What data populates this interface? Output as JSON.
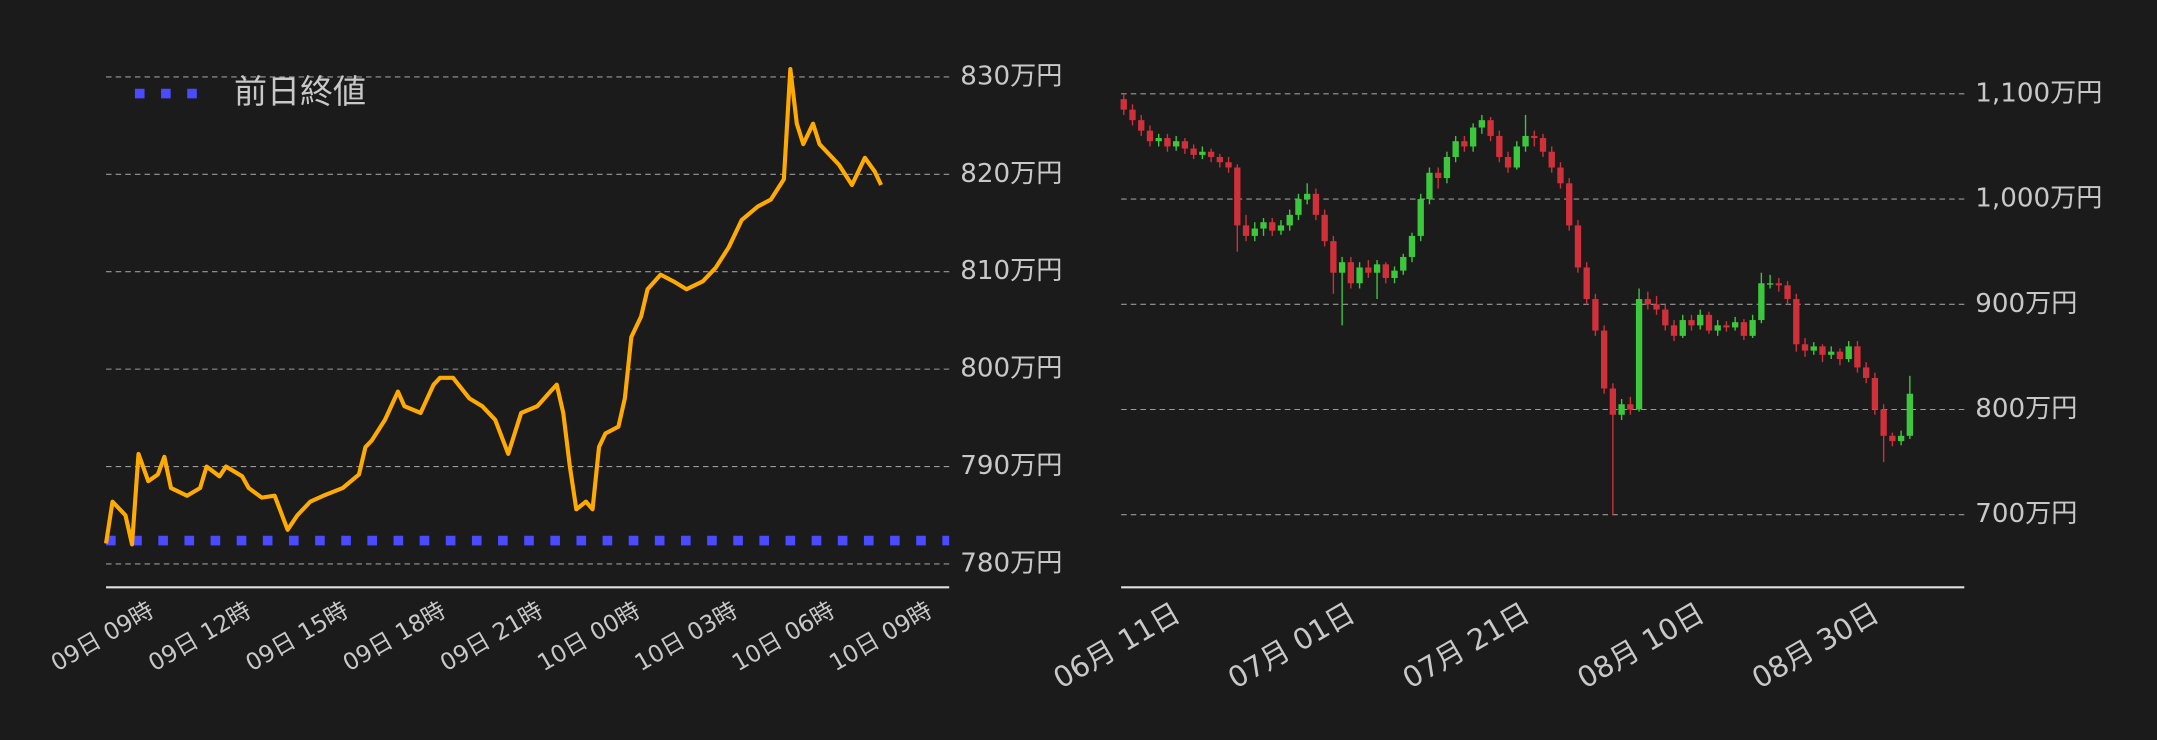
{
  "chart_data": [
    {
      "type": "line",
      "x": [
        -1.0,
        -0.8,
        -0.4,
        -0.2,
        0.0,
        0.3,
        0.6,
        0.8,
        1.0,
        1.5,
        1.9,
        2.1,
        2.5,
        2.7,
        3.2,
        3.4,
        3.8,
        4.2,
        4.6,
        4.9,
        5.3,
        5.7,
        6.3,
        6.8,
        7.0,
        7.2,
        7.6,
        8.0,
        8.2,
        8.7,
        9.1,
        9.3,
        9.7,
        10.2,
        10.6,
        11.0,
        11.4,
        11.8,
        12.3,
        12.7,
        12.9,
        13.1,
        13.3,
        13.5,
        13.8,
        14.0,
        14.2,
        14.4,
        14.8,
        15.0,
        15.2,
        15.5,
        15.7,
        16.1,
        16.5,
        16.9,
        17.4,
        17.8,
        18.2,
        18.6,
        19.1,
        19.5,
        19.9,
        20.1,
        20.3,
        20.5,
        20.8,
        21.0,
        21.2,
        21.6,
        22.0,
        22.4,
        22.7,
        22.9
      ],
      "series": [
        {
          "color": "#ffaa00",
          "values": [
            782.1,
            786.4,
            785,
            782,
            791.3,
            788.5,
            789.2,
            791,
            787.8,
            787,
            787.8,
            790,
            789,
            790,
            789,
            787.8,
            786.8,
            787,
            783.5,
            785,
            786.4,
            787,
            787.8,
            789.2,
            792,
            792.7,
            794.8,
            797.7,
            796.2,
            795.5,
            798.4,
            799.1,
            799.1,
            797,
            796.2,
            794.8,
            791.3,
            795.5,
            796.2,
            797.7,
            798.4,
            795.5,
            790,
            785.6,
            786.4,
            785.6,
            792,
            793.4,
            794.1,
            797,
            803.3,
            805.4,
            808.2,
            809.7,
            809,
            808.2,
            809,
            810.4,
            812.5,
            815.3,
            816.7,
            817.4,
            819.5,
            830.8,
            825.2,
            823.1,
            825.2,
            823.1,
            822.4,
            821,
            818.9,
            821.7,
            820.3,
            818.9
          ]
        }
      ],
      "reference_lines": [
        {
          "name": "前日終値",
          "value": 782.4,
          "color": "#4a4aff"
        }
      ],
      "legend": "upper left",
      "xlim": [
        -1,
        25
      ],
      "xticks": [
        {
          "value": 0,
          "label": "09日 09時"
        },
        {
          "value": 3,
          "label": "09日 12時"
        },
        {
          "value": 6,
          "label": "09日 15時"
        },
        {
          "value": 9,
          "label": "09日 18時"
        },
        {
          "value": 12,
          "label": "09日 21時"
        },
        {
          "value": 15,
          "label": "10日 00時"
        },
        {
          "value": 18,
          "label": "10日 03時"
        },
        {
          "value": 21,
          "label": "10日 06時"
        },
        {
          "value": 24,
          "label": "10日 09時"
        }
      ],
      "ylim": [
        777.6,
        831.4
      ],
      "yticks": [
        {
          "value": 780,
          "label": "780万円"
        },
        {
          "value": 790,
          "label": "790万円"
        },
        {
          "value": 800,
          "label": "800万円"
        },
        {
          "value": 810,
          "label": "810万円"
        },
        {
          "value": 820,
          "label": "820万円"
        },
        {
          "value": 830,
          "label": "830万円"
        }
      ],
      "grid": true
    },
    {
      "type": "candlestick",
      "up_color": "#3cc83c",
      "down_color": "#d0303a",
      "categories": [
        null,
        null,
        null,
        null,
        null,
        "06月 11日",
        null,
        null,
        null,
        null,
        null,
        null,
        null,
        null,
        null,
        null,
        null,
        null,
        null,
        null,
        null,
        null,
        null,
        null,
        null,
        "07月 01日",
        null,
        null,
        null,
        null,
        null,
        null,
        null,
        null,
        null,
        null,
        null,
        null,
        null,
        null,
        null,
        null,
        null,
        null,
        null,
        "07月 21日",
        null,
        null,
        null,
        null,
        null,
        null,
        null,
        null,
        null,
        null,
        null,
        null,
        null,
        null,
        null,
        null,
        null,
        null,
        null,
        "08月 10日",
        null,
        null,
        null,
        null,
        null,
        null,
        null,
        null,
        null,
        null,
        null,
        null,
        null,
        null,
        null,
        null,
        null,
        null,
        null,
        "08月 30日",
        null,
        null,
        null,
        null,
        null
      ],
      "ohlc": [
        [
          1095,
          1100,
          1080,
          1085
        ],
        [
          1085,
          1090,
          1070,
          1075
        ],
        [
          1075,
          1080,
          1060,
          1065
        ],
        [
          1065,
          1070,
          1050,
          1055
        ],
        [
          1055,
          1062,
          1050,
          1058
        ],
        [
          1058,
          1062,
          1045,
          1050
        ],
        [
          1050,
          1060,
          1046,
          1055
        ],
        [
          1055,
          1058,
          1043,
          1048
        ],
        [
          1048,
          1052,
          1038,
          1042
        ],
        [
          1042,
          1050,
          1038,
          1045
        ],
        [
          1045,
          1048,
          1035,
          1040
        ],
        [
          1040,
          1043,
          1030,
          1035
        ],
        [
          1035,
          1040,
          1025,
          1030
        ],
        [
          1030,
          1033,
          950,
          975
        ],
        [
          975,
          985,
          960,
          965
        ],
        [
          965,
          978,
          960,
          972
        ],
        [
          972,
          982,
          965,
          978
        ],
        [
          978,
          982,
          965,
          970
        ],
        [
          970,
          980,
          966,
          975
        ],
        [
          975,
          990,
          970,
          985
        ],
        [
          985,
          1005,
          980,
          1000
        ],
        [
          1000,
          1015,
          995,
          1005
        ],
        [
          1005,
          1010,
          980,
          985
        ],
        [
          985,
          990,
          955,
          960
        ],
        [
          960,
          965,
          910,
          930
        ],
        [
          930,
          945,
          880,
          940
        ],
        [
          940,
          945,
          915,
          920
        ],
        [
          920,
          940,
          915,
          935
        ],
        [
          935,
          942,
          925,
          930
        ],
        [
          930,
          942,
          905,
          938
        ],
        [
          938,
          940,
          920,
          925
        ],
        [
          925,
          936,
          920,
          932
        ],
        [
          932,
          948,
          928,
          945
        ],
        [
          945,
          968,
          940,
          965
        ],
        [
          965,
          1005,
          960,
          1000
        ],
        [
          1000,
          1030,
          995,
          1025
        ],
        [
          1025,
          1030,
          1010,
          1020
        ],
        [
          1020,
          1045,
          1015,
          1040
        ],
        [
          1040,
          1060,
          1035,
          1055
        ],
        [
          1055,
          1060,
          1045,
          1050
        ],
        [
          1050,
          1072,
          1045,
          1068
        ],
        [
          1068,
          1080,
          1062,
          1075
        ],
        [
          1075,
          1078,
          1055,
          1060
        ],
        [
          1060,
          1065,
          1035,
          1040
        ],
        [
          1040,
          1045,
          1025,
          1030
        ],
        [
          1030,
          1055,
          1028,
          1050
        ],
        [
          1050,
          1080,
          1045,
          1060
        ],
        [
          1060,
          1065,
          1050,
          1058
        ],
        [
          1058,
          1062,
          1040,
          1045
        ],
        [
          1045,
          1050,
          1025,
          1030
        ],
        [
          1030,
          1035,
          1010,
          1015
        ],
        [
          1015,
          1020,
          970,
          975
        ],
        [
          975,
          980,
          930,
          935
        ],
        [
          935,
          940,
          900,
          905
        ],
        [
          905,
          910,
          870,
          875
        ],
        [
          875,
          880,
          815,
          820
        ],
        [
          820,
          825,
          700,
          795
        ],
        [
          795,
          810,
          790,
          805
        ],
        [
          805,
          812,
          795,
          800
        ],
        [
          800,
          915,
          798,
          905
        ],
        [
          905,
          912,
          895,
          900
        ],
        [
          900,
          908,
          890,
          895
        ],
        [
          895,
          900,
          875,
          880
        ],
        [
          880,
          885,
          865,
          870
        ],
        [
          870,
          890,
          868,
          885
        ],
        [
          885,
          890,
          875,
          880
        ],
        [
          880,
          895,
          876,
          890
        ],
        [
          890,
          893,
          872,
          875
        ],
        [
          875,
          885,
          870,
          880
        ],
        [
          880,
          884,
          874,
          878
        ],
        [
          878,
          888,
          875,
          883
        ],
        [
          883,
          886,
          866,
          870
        ],
        [
          870,
          890,
          868,
          885
        ],
        [
          885,
          930,
          882,
          920
        ],
        [
          920,
          928,
          915,
          920
        ],
        [
          920,
          925,
          912,
          918
        ],
        [
          918,
          922,
          900,
          905
        ],
        [
          905,
          910,
          855,
          862
        ],
        [
          862,
          868,
          850,
          856
        ],
        [
          856,
          864,
          852,
          860
        ],
        [
          860,
          862,
          845,
          852
        ],
        [
          852,
          860,
          848,
          855
        ],
        [
          855,
          858,
          842,
          848
        ],
        [
          848,
          865,
          845,
          860
        ],
        [
          860,
          865,
          835,
          840
        ],
        [
          840,
          845,
          825,
          830
        ],
        [
          830,
          835,
          795,
          800
        ],
        [
          800,
          805,
          750,
          775
        ],
        [
          775,
          778,
          765,
          770
        ],
        [
          770,
          780,
          766,
          775
        ],
        [
          775,
          832,
          772,
          815
        ]
      ],
      "ylim": [
        631,
        1116
      ],
      "yticks": [
        {
          "value": 700,
          "label": "700万円"
        },
        {
          "value": 800,
          "label": "800万円"
        },
        {
          "value": 900,
          "label": "900万円"
        },
        {
          "value": 1000,
          "label": "1,000万円"
        },
        {
          "value": 1100,
          "label": "1,100万円"
        }
      ],
      "grid": true
    }
  ]
}
